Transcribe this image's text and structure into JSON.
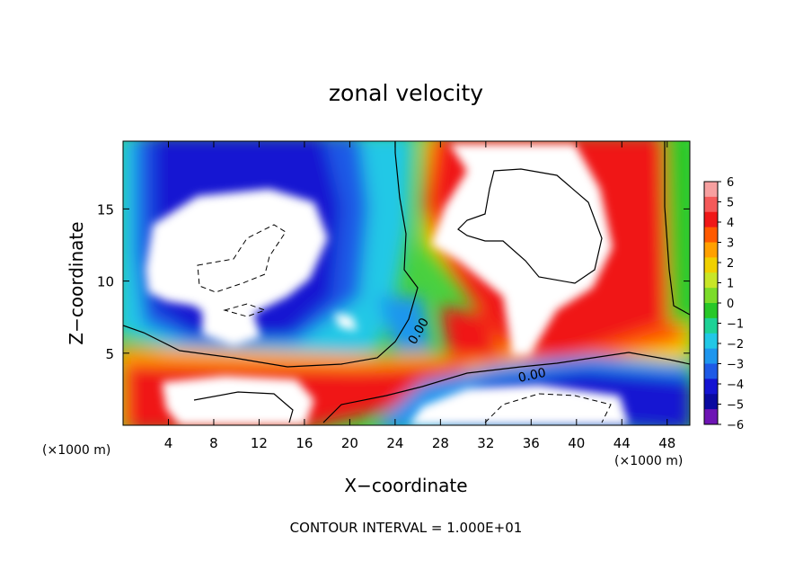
{
  "chart_data": {
    "type": "heatmap",
    "title": "zonal velocity",
    "xlabel": "X−coordinate",
    "ylabel": "Z−coordinate",
    "x_unit_left": "(×1000 m)",
    "x_unit_right": "(×1000 m)",
    "footer": "CONTOUR INTERVAL = 1.000E+01",
    "xlim": [
      0,
      50
    ],
    "ylim": [
      0,
      19.7
    ],
    "x_ticks": [
      4,
      8,
      12,
      16,
      20,
      24,
      28,
      32,
      36,
      40,
      44,
      48
    ],
    "y_ticks": [
      5,
      10,
      15
    ],
    "colorbar": {
      "ticks": [
        6,
        5,
        4,
        3,
        2,
        1,
        0,
        -1,
        -2,
        -3,
        -4,
        -5,
        -6
      ],
      "range": [
        -6,
        6
      ],
      "colors": [
        "#f7a0a0",
        "#f55a5a",
        "#f01818",
        "#ff5a00",
        "#ffa000",
        "#f0d000",
        "#c8e628",
        "#7cdc2a",
        "#28c828",
        "#1ed296",
        "#22c8e6",
        "#1e96ee",
        "#1e5ae6",
        "#1414d2",
        "#0a0aa0",
        "#6e14b4"
      ]
    },
    "contour_labels": [
      "0.00",
      "0.00"
    ],
    "regions": [
      {
        "name": "upper-left negative jet",
        "x": [
          0,
          24
        ],
        "y": [
          6,
          19.7
        ],
        "value_min": -6,
        "value_max": -2
      },
      {
        "name": "upper-right positive jet",
        "x": [
          26,
          50
        ],
        "y": [
          5,
          19.7
        ],
        "value_min": 2,
        "value_max": 6
      },
      {
        "name": "lower-left positive band",
        "x": [
          0,
          30
        ],
        "y": [
          0,
          5
        ],
        "value_min": 1,
        "value_max": 6
      },
      {
        "name": "lower-right negative band",
        "x": [
          30,
          50
        ],
        "y": [
          0,
          4
        ],
        "value_min": -6,
        "value_max": -2
      }
    ]
  }
}
